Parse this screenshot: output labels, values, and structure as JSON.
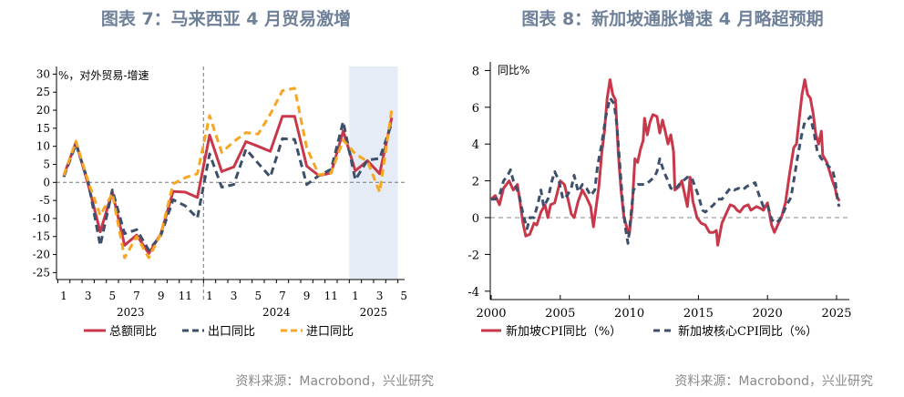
{
  "left": {
    "title": "图表 7：马来西亚 4 月贸易激增",
    "source": "资料来源：Macrobond，兴业研究"
  },
  "right": {
    "title": "图表 8：新加坡通胀增速 4 月略超预期",
    "source": "资料来源：Macrobond，兴业研究"
  },
  "colors": {
    "red": "#c8384a",
    "navy": "#3d4f6b",
    "orange": "#f5a623",
    "shade": "#e6ecf5"
  },
  "chart_data": [
    {
      "type": "line",
      "unit_label": "%，对外贸易-增速",
      "ylim": [
        -27,
        32
      ],
      "y_ticks": [
        30,
        25,
        20,
        15,
        10,
        5,
        0,
        -5,
        -10,
        -15,
        -20,
        -25
      ],
      "x_month_labels": [
        "1",
        "3",
        "5",
        "7",
        "9",
        "11",
        "1",
        "3",
        "5",
        "7",
        "9",
        "11",
        "1",
        "3",
        "5"
      ],
      "x_year_labels": [
        "2023",
        "2024",
        "2025"
      ],
      "x_start": "2023-01",
      "highlight_range": [
        "2025-01",
        "2025-04"
      ],
      "divider_at": "2024-01",
      "grid": false,
      "legend_position": "bottom",
      "series": [
        {
          "name": "总额同比",
          "color": "#c8384a",
          "style": "solid",
          "values": [
            1.9,
            11.1,
            -0.5,
            -13.7,
            -2.7,
            -17.4,
            -14.6,
            -19.7,
            -14.2,
            -2.5,
            -2.7,
            -4.2,
            13.1,
            3.0,
            4.3,
            11.3,
            10.0,
            8.6,
            18.3,
            18.3,
            4.5,
            1.9,
            2.6,
            14.2,
            3.2,
            6.0,
            2.4,
            18.0
          ]
        },
        {
          "name": "出口同比",
          "color": "#3d4f6b",
          "style": "dashed",
          "values": [
            1.5,
            10.6,
            0.3,
            -17.5,
            -2.1,
            -14.2,
            -13.1,
            -18.8,
            -14.6,
            -4.8,
            -6.5,
            -9.9,
            7.9,
            -1.3,
            -0.6,
            9.2,
            5.3,
            1.5,
            12.1,
            11.9,
            -0.6,
            1.9,
            3.6,
            16.8,
            0.7,
            6.2,
            6.6,
            16.4
          ]
        },
        {
          "name": "进口同比",
          "color": "#f5a623",
          "style": "dashed",
          "values": [
            1.9,
            11.4,
            0.3,
            -9.1,
            -3.1,
            -20.9,
            -15.0,
            -20.9,
            -14.2,
            -0.4,
            1.3,
            2.4,
            18.5,
            8.3,
            11.3,
            13.8,
            13.4,
            18.9,
            25.4,
            26.1,
            9.6,
            2.1,
            2.6,
            11.7,
            7.9,
            5.8,
            -2.7,
            20.2
          ]
        }
      ]
    },
    {
      "type": "line",
      "unit_label": "同比%",
      "ylim": [
        -4.5,
        8.2
      ],
      "xlim": [
        2000,
        2025.8
      ],
      "y_ticks": [
        8,
        6,
        4,
        2,
        0,
        -2,
        -4
      ],
      "x_ticks": [
        2000,
        2005,
        2010,
        2015,
        2020,
        2025
      ],
      "grid": false,
      "legend_position": "bottom",
      "series": [
        {
          "name": "新加坡CPI同比（%）",
          "color": "#c8384a",
          "style": "solid",
          "points": [
            [
              2000.0,
              1.0
            ],
            [
              2000.3,
              1.2
            ],
            [
              2000.6,
              0.7
            ],
            [
              2000.9,
              1.6
            ],
            [
              2001.3,
              2.0
            ],
            [
              2001.6,
              1.5
            ],
            [
              2001.9,
              1.8
            ],
            [
              2002.1,
              0.8
            ],
            [
              2002.3,
              -0.3
            ],
            [
              2002.5,
              -1.0
            ],
            [
              2002.8,
              -0.9
            ],
            [
              2003.1,
              -0.3
            ],
            [
              2003.3,
              -0.4
            ],
            [
              2003.6,
              0.3
            ],
            [
              2003.9,
              0.7
            ],
            [
              2004.1,
              0.0
            ],
            [
              2004.3,
              0.7
            ],
            [
              2004.6,
              0.8
            ],
            [
              2004.9,
              1.7
            ],
            [
              2005.0,
              2.0
            ],
            [
              2005.3,
              1.8
            ],
            [
              2005.5,
              1.2
            ],
            [
              2005.8,
              0.2
            ],
            [
              2006.0,
              0.0
            ],
            [
              2006.3,
              0.9
            ],
            [
              2006.6,
              1.5
            ],
            [
              2006.9,
              1.1
            ],
            [
              2007.2,
              0.6
            ],
            [
              2007.4,
              -0.5
            ],
            [
              2007.6,
              0.6
            ],
            [
              2007.8,
              1.7
            ],
            [
              2008.0,
              3.5
            ],
            [
              2008.2,
              4.7
            ],
            [
              2008.4,
              6.5
            ],
            [
              2008.6,
              7.5
            ],
            [
              2008.8,
              6.7
            ],
            [
              2009.0,
              6.4
            ],
            [
              2009.2,
              3.5
            ],
            [
              2009.4,
              1.5
            ],
            [
              2009.6,
              0.1
            ],
            [
              2009.8,
              -0.5
            ],
            [
              2010.0,
              -0.9
            ],
            [
              2010.2,
              0.5
            ],
            [
              2010.4,
              3.2
            ],
            [
              2010.6,
              3.0
            ],
            [
              2010.8,
              3.7
            ],
            [
              2011.0,
              4.2
            ],
            [
              2011.1,
              5.4
            ],
            [
              2011.3,
              4.5
            ],
            [
              2011.5,
              5.2
            ],
            [
              2011.7,
              5.6
            ],
            [
              2012.0,
              5.5
            ],
            [
              2012.2,
              4.6
            ],
            [
              2012.4,
              5.3
            ],
            [
              2012.6,
              4.7
            ],
            [
              2012.8,
              4.0
            ],
            [
              2013.0,
              4.5
            ],
            [
              2013.2,
              3.6
            ],
            [
              2013.3,
              1.5
            ],
            [
              2013.6,
              1.7
            ],
            [
              2013.8,
              2.0
            ],
            [
              2014.0,
              1.3
            ],
            [
              2014.2,
              0.6
            ],
            [
              2014.4,
              2.2
            ],
            [
              2014.6,
              0.9
            ],
            [
              2014.9,
              0.0
            ],
            [
              2015.2,
              -0.3
            ],
            [
              2015.5,
              -0.4
            ],
            [
              2015.8,
              -0.8
            ],
            [
              2016.1,
              -0.8
            ],
            [
              2016.3,
              -0.7
            ],
            [
              2016.4,
              -1.5
            ],
            [
              2016.7,
              -0.3
            ],
            [
              2017.0,
              0.2
            ],
            [
              2017.3,
              0.7
            ],
            [
              2017.6,
              0.6
            ],
            [
              2017.8,
              0.4
            ],
            [
              2018.0,
              0.3
            ],
            [
              2018.3,
              0.6
            ],
            [
              2018.6,
              0.7
            ],
            [
              2018.8,
              0.4
            ],
            [
              2019.2,
              0.6
            ],
            [
              2019.5,
              0.5
            ],
            [
              2019.7,
              0.4
            ],
            [
              2020.0,
              0.8
            ],
            [
              2020.3,
              -0.4
            ],
            [
              2020.5,
              -0.8
            ],
            [
              2020.8,
              -0.3
            ],
            [
              2021.0,
              0.0
            ],
            [
              2021.3,
              0.8
            ],
            [
              2021.6,
              2.4
            ],
            [
              2021.9,
              3.8
            ],
            [
              2022.1,
              4.0
            ],
            [
              2022.3,
              5.4
            ],
            [
              2022.5,
              6.7
            ],
            [
              2022.7,
              7.5
            ],
            [
              2022.9,
              6.7
            ],
            [
              2023.1,
              6.5
            ],
            [
              2023.3,
              5.7
            ],
            [
              2023.5,
              4.5
            ],
            [
              2023.7,
              4.0
            ],
            [
              2023.9,
              4.7
            ],
            [
              2024.0,
              3.4
            ],
            [
              2024.3,
              3.0
            ],
            [
              2024.5,
              2.5
            ],
            [
              2024.7,
              2.0
            ],
            [
              2024.9,
              1.6
            ],
            [
              2025.0,
              1.2
            ],
            [
              2025.2,
              0.9
            ]
          ]
        },
        {
          "name": "新加坡核心CPI同比（%）",
          "color": "#3d4f6b",
          "style": "dashed",
          "points": [
            [
              2000.0,
              1.0
            ],
            [
              2000.3,
              1.0
            ],
            [
              2000.6,
              1.2
            ],
            [
              2000.9,
              2.0
            ],
            [
              2001.2,
              2.3
            ],
            [
              2001.4,
              2.6
            ],
            [
              2001.6,
              2.0
            ],
            [
              2002.0,
              1.3
            ],
            [
              2002.3,
              0.2
            ],
            [
              2002.6,
              -0.6
            ],
            [
              2002.8,
              0.0
            ],
            [
              2003.1,
              0.0
            ],
            [
              2003.4,
              0.8
            ],
            [
              2003.6,
              1.5
            ],
            [
              2003.8,
              0.6
            ],
            [
              2004.1,
              1.0
            ],
            [
              2004.4,
              2.0
            ],
            [
              2004.6,
              2.5
            ],
            [
              2004.9,
              2.0
            ],
            [
              2005.2,
              1.0
            ],
            [
              2005.5,
              1.2
            ],
            [
              2005.8,
              1.6
            ],
            [
              2006.0,
              2.3
            ],
            [
              2006.3,
              1.4
            ],
            [
              2006.6,
              1.8
            ],
            [
              2006.9,
              1.6
            ],
            [
              2007.2,
              1.2
            ],
            [
              2007.5,
              1.5
            ],
            [
              2007.7,
              2.8
            ],
            [
              2008.0,
              4.0
            ],
            [
              2008.3,
              5.5
            ],
            [
              2008.6,
              6.5
            ],
            [
              2008.9,
              6.2
            ],
            [
              2009.1,
              5.0
            ],
            [
              2009.3,
              3.0
            ],
            [
              2009.5,
              1.0
            ],
            [
              2009.7,
              -0.5
            ],
            [
              2009.9,
              -1.4
            ],
            [
              2010.1,
              0.0
            ],
            [
              2010.3,
              1.5
            ],
            [
              2010.6,
              1.8
            ],
            [
              2010.9,
              1.8
            ],
            [
              2011.2,
              1.8
            ],
            [
              2011.5,
              2.0
            ],
            [
              2011.8,
              2.2
            ],
            [
              2012.0,
              2.5
            ],
            [
              2012.2,
              3.2
            ],
            [
              2012.5,
              2.5
            ],
            [
              2012.8,
              2.0
            ],
            [
              2013.0,
              1.6
            ],
            [
              2013.3,
              1.5
            ],
            [
              2013.6,
              1.8
            ],
            [
              2013.9,
              2.0
            ],
            [
              2014.2,
              2.2
            ],
            [
              2014.5,
              2.2
            ],
            [
              2014.8,
              1.6
            ],
            [
              2015.0,
              1.2
            ],
            [
              2015.3,
              0.4
            ],
            [
              2015.5,
              0.3
            ],
            [
              2015.8,
              0.5
            ],
            [
              2016.1,
              0.7
            ],
            [
              2016.4,
              1.0
            ],
            [
              2016.7,
              1.0
            ],
            [
              2017.0,
              1.3
            ],
            [
              2017.3,
              1.6
            ],
            [
              2017.6,
              1.5
            ],
            [
              2017.9,
              1.6
            ],
            [
              2018.2,
              1.5
            ],
            [
              2018.5,
              1.7
            ],
            [
              2018.8,
              1.8
            ],
            [
              2019.1,
              1.9
            ],
            [
              2019.4,
              1.2
            ],
            [
              2019.7,
              0.6
            ],
            [
              2020.0,
              0.7
            ],
            [
              2020.3,
              -0.1
            ],
            [
              2020.6,
              -0.3
            ],
            [
              2020.9,
              -0.1
            ],
            [
              2021.1,
              0.2
            ],
            [
              2021.4,
              0.7
            ],
            [
              2021.7,
              1.1
            ],
            [
              2021.9,
              2.0
            ],
            [
              2022.2,
              3.4
            ],
            [
              2022.5,
              4.6
            ],
            [
              2022.7,
              5.2
            ],
            [
              2022.9,
              5.3
            ],
            [
              2023.1,
              5.5
            ],
            [
              2023.4,
              4.5
            ],
            [
              2023.6,
              3.6
            ],
            [
              2023.9,
              3.2
            ],
            [
              2024.1,
              3.1
            ],
            [
              2024.4,
              2.8
            ],
            [
              2024.7,
              2.6
            ],
            [
              2024.9,
              2.0
            ],
            [
              2025.1,
              0.8
            ],
            [
              2025.2,
              0.6
            ]
          ]
        }
      ]
    }
  ]
}
